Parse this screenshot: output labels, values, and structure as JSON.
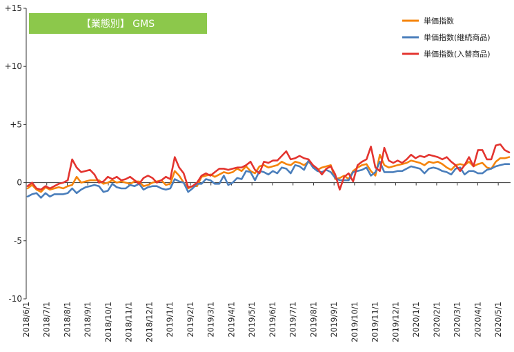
{
  "chart_data": {
    "type": "line",
    "title": "【業態別】 GMS",
    "title_box_color": "#8cc84b",
    "ylim": [
      -10,
      15
    ],
    "y_ticks": [
      {
        "value": 15,
        "label": "+15"
      },
      {
        "value": 10,
        "label": "+10"
      },
      {
        "value": 5,
        "label": "+5"
      },
      {
        "value": 0,
        "label": "0"
      },
      {
        "value": -5,
        "label": "-5"
      },
      {
        "value": -10,
        "label": "-10"
      }
    ],
    "x_tick_labels": [
      "2018/6/1",
      "2018/7/1",
      "2018/8/1",
      "2018/9/1",
      "2018/10/1",
      "2018/11/1",
      "2018/12/1",
      "2019/1/1",
      "2019/2/1",
      "2019/3/1",
      "2019/4/1",
      "2019/5/1",
      "2019/6/1",
      "2019/7/1",
      "2019/8/1",
      "2019/9/1",
      "2019/10/1",
      "2019/11/1",
      "2019/12/1",
      "2020/1/1",
      "2020/2/1",
      "2020/3/1",
      "2020/4/1",
      "2020/5/1"
    ],
    "grid": false,
    "legend_position": "top-right",
    "series": [
      {
        "name": "単価指数",
        "color": "#f5840c",
        "values": [
          -0.5,
          -0.2,
          -0.6,
          -0.8,
          -0.4,
          -0.6,
          -0.5,
          -0.4,
          -0.5,
          -0.3,
          -0.2,
          0.5,
          0.0,
          0.1,
          0.2,
          0.2,
          0.2,
          -0.1,
          0.0,
          0.2,
          0.0,
          0.1,
          0.0,
          -0.1,
          0.1,
          0.1,
          -0.3,
          -0.2,
          0.0,
          0.1,
          0.2,
          -0.2,
          -0.1,
          1.0,
          0.6,
          0.0,
          -0.5,
          -0.3,
          -0.3,
          0.5,
          0.6,
          0.7,
          0.5,
          0.7,
          0.9,
          0.8,
          0.9,
          1.2,
          1.0,
          1.4,
          1.0,
          0.8,
          1.4,
          1.5,
          1.3,
          1.4,
          1.5,
          1.8,
          1.6,
          1.5,
          1.8,
          1.7,
          1.5,
          1.8,
          1.4,
          1.1,
          1.3,
          1.4,
          1.5,
          0.3,
          0.4,
          0.6,
          0.3,
          1.0,
          1.3,
          1.5,
          1.6,
          1.0,
          0.6,
          2.4,
          1.5,
          1.3,
          1.4,
          1.5,
          1.6,
          1.7,
          1.9,
          1.8,
          1.7,
          1.5,
          1.8,
          1.7,
          1.8,
          1.6,
          1.3,
          1.1,
          1.5,
          1.6,
          1.5,
          1.8,
          1.4,
          1.6,
          1.7,
          1.3,
          1.2,
          1.8,
          2.1,
          2.1,
          2.2
        ]
      },
      {
        "name": "単価指数(継続商品)",
        "color": "#4a7ebb",
        "values": [
          -1.2,
          -1.0,
          -0.9,
          -1.3,
          -0.9,
          -1.2,
          -1.0,
          -1.0,
          -1.0,
          -0.9,
          -0.5,
          -0.9,
          -0.6,
          -0.4,
          -0.3,
          -0.2,
          -0.3,
          -0.8,
          -0.7,
          -0.1,
          -0.4,
          -0.5,
          -0.5,
          -0.2,
          -0.3,
          -0.1,
          -0.6,
          -0.4,
          -0.3,
          -0.3,
          -0.5,
          -0.6,
          -0.5,
          0.3,
          0.1,
          0.0,
          -0.8,
          -0.5,
          -0.1,
          -0.1,
          0.3,
          0.2,
          -0.1,
          -0.1,
          0.6,
          -0.2,
          0.0,
          0.4,
          0.3,
          1.0,
          0.9,
          0.2,
          1.0,
          0.9,
          0.7,
          1.0,
          0.8,
          1.3,
          1.2,
          0.8,
          1.5,
          1.4,
          1.1,
          1.9,
          1.3,
          1.0,
          0.9,
          1.1,
          0.9,
          0.4,
          0.2,
          0.2,
          0.2,
          0.9,
          1.0,
          1.1,
          1.3,
          0.6,
          0.9,
          1.8,
          0.9,
          0.9,
          0.9,
          1.0,
          1.0,
          1.2,
          1.4,
          1.3,
          1.2,
          0.8,
          1.2,
          1.3,
          1.2,
          1.0,
          0.9,
          0.7,
          1.2,
          1.3,
          0.7,
          1.0,
          1.0,
          0.8,
          0.8,
          1.1,
          1.2,
          1.4,
          1.5,
          1.6,
          1.6
        ]
      },
      {
        "name": "単価指数(入替商品)",
        "color": "#e3342f",
        "values": [
          -0.3,
          0.0,
          -0.5,
          -0.6,
          -0.3,
          -0.5,
          -0.3,
          -0.1,
          0.0,
          0.2,
          2.0,
          1.3,
          0.9,
          1.0,
          1.1,
          0.7,
          0.0,
          0.1,
          0.5,
          0.3,
          0.5,
          0.2,
          0.3,
          0.5,
          0.2,
          -0.1,
          0.4,
          0.6,
          0.4,
          0.0,
          0.2,
          0.5,
          0.3,
          2.2,
          1.3,
          0.8,
          -0.4,
          -0.3,
          0.0,
          0.6,
          0.8,
          0.6,
          0.9,
          1.2,
          1.2,
          1.1,
          1.2,
          1.3,
          1.3,
          1.5,
          1.8,
          1.1,
          0.8,
          1.8,
          1.7,
          1.9,
          1.9,
          2.3,
          2.7,
          2.0,
          2.1,
          2.3,
          2.1,
          2.0,
          1.5,
          1.2,
          0.7,
          1.2,
          1.4,
          0.7,
          -0.6,
          0.5,
          0.8,
          0.1,
          1.5,
          1.8,
          2.0,
          3.1,
          1.3,
          1.0,
          3.0,
          1.9,
          1.7,
          1.9,
          1.7,
          2.0,
          2.4,
          2.1,
          2.3,
          2.2,
          2.4,
          2.3,
          2.2,
          2.0,
          2.2,
          1.8,
          1.5,
          1.0,
          1.5,
          2.2,
          1.4,
          2.8,
          2.8,
          2.0,
          2.0,
          3.2,
          3.3,
          2.8,
          2.6
        ]
      }
    ]
  }
}
